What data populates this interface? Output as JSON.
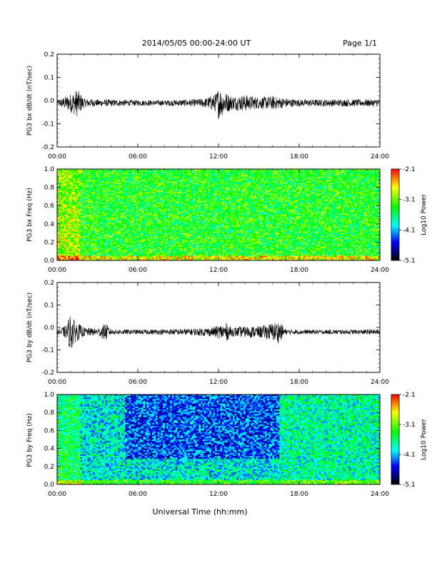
{
  "page": {
    "title": "2014/05/05  00:00-24:00 UT",
    "page_label": "Page 1/1",
    "xlabel": "Universal Time (hh:mm)"
  },
  "colorbar": {
    "label": "Log10 Power",
    "ticks": [
      "-2.1",
      "-3.1",
      "-4.1",
      "-5.1"
    ],
    "colors": [
      "#ff0000",
      "#ffff00",
      "#00ff00",
      "#00ffff",
      "#0000ff",
      "#000000"
    ]
  },
  "chart_data": [
    {
      "type": "line",
      "ylabel": "PG3 bx dB/dt (nT/sec)",
      "ylim": [
        -0.2,
        0.2
      ],
      "yticks": [
        "0.2",
        "0.1",
        "0.0",
        "-0.1",
        "-0.2"
      ],
      "xlim": [
        "00:00",
        "24:00"
      ],
      "xticks": [
        "00:00",
        "06:00",
        "12:00",
        "18:00",
        "24:00"
      ],
      "series": [
        {
          "x_hours": [
            0,
            1,
            1.5,
            2,
            3,
            4,
            6,
            8,
            10,
            11,
            11.8,
            12,
            12.4,
            13,
            14,
            15,
            16,
            17,
            18,
            20,
            22,
            24
          ],
          "envelope": [
            0.01,
            0.04,
            0.06,
            0.02,
            0.015,
            0.015,
            0.012,
            0.012,
            0.015,
            0.02,
            0.04,
            0.07,
            0.05,
            0.03,
            0.035,
            0.025,
            0.03,
            0.02,
            0.015,
            0.015,
            0.015,
            0.015
          ],
          "baseline": -0.01
        }
      ]
    },
    {
      "type": "heatmap",
      "ylabel": "PG3 bx Freq (Hz)",
      "ylim": [
        0.0,
        1.0
      ],
      "yticks": [
        "1.0",
        "0.8",
        "0.6",
        "0.4",
        "0.2",
        "0.0"
      ],
      "xlim": [
        "00:00",
        "24:00"
      ],
      "xticks": [
        "00:00",
        "06:00",
        "12:00",
        "18:00",
        "24:00"
      ],
      "zlim": [
        -5.1,
        -2.1
      ],
      "mean_log_power": -3.35
    },
    {
      "type": "line",
      "ylabel": "PG3 by dB/dt (nT/sec)",
      "ylim": [
        -0.2,
        0.2
      ],
      "yticks": [
        "0.2",
        "0.1",
        "0.0",
        "-0.1",
        "-0.2"
      ],
      "xlim": [
        "00:00",
        "24:00"
      ],
      "xticks": [
        "00:00",
        "06:00",
        "12:00",
        "18:00",
        "24:00"
      ],
      "series": [
        {
          "x_hours": [
            0,
            0.7,
            1,
            1.3,
            2,
            3,
            3.6,
            4,
            6,
            8,
            10,
            11.5,
            12,
            12.6,
            13,
            14,
            15,
            16,
            16.5,
            17,
            18,
            20,
            22,
            24
          ],
          "envelope": [
            0.01,
            0.03,
            0.09,
            0.05,
            0.02,
            0.015,
            0.04,
            0.012,
            0.01,
            0.012,
            0.015,
            0.02,
            0.03,
            0.04,
            0.02,
            0.025,
            0.025,
            0.04,
            0.05,
            0.012,
            0.01,
            0.01,
            0.01,
            0.012
          ],
          "baseline": -0.02
        }
      ]
    },
    {
      "type": "heatmap",
      "ylabel": "PG3 by Freq (Hz)",
      "ylim": [
        0.0,
        1.0
      ],
      "yticks": [
        "1.0",
        "0.8",
        "0.6",
        "0.4",
        "0.2",
        "0.0"
      ],
      "xlim": [
        "00:00",
        "24:00"
      ],
      "xticks": [
        "00:00",
        "06:00",
        "12:00",
        "18:00",
        "24:00"
      ],
      "zlim": [
        -5.1,
        -2.1
      ],
      "mean_log_power": -3.9
    }
  ]
}
